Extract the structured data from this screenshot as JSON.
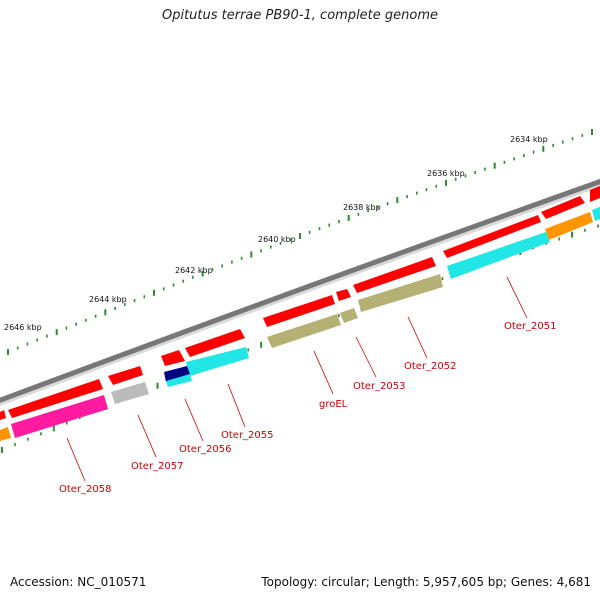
{
  "title": "Opitutus terrae PB90-1, complete genome",
  "footer": {
    "accession": "Accession: NC_010571",
    "summary": "Topology: circular; Length: 5,957,605 bp; Genes: 4,681"
  },
  "scale": {
    "markers": [
      {
        "label": "2634 kbp",
        "kbp": 2634
      },
      {
        "label": "2636 kbp",
        "kbp": 2636
      },
      {
        "label": "2638 kbp",
        "kbp": 2638
      },
      {
        "label": "2640 kbp",
        "kbp": 2640
      },
      {
        "label": "2642 kbp",
        "kbp": 2642
      },
      {
        "label": "2644 kbp",
        "kbp": 2644
      },
      {
        "label": "2646 kbp",
        "kbp": 2646
      }
    ]
  },
  "gene_labels": [
    {
      "label": "Oter_2051"
    },
    {
      "label": "Oter_2052"
    },
    {
      "label": "Oter_2053"
    },
    {
      "label": "groEL"
    },
    {
      "label": "Oter_2055"
    },
    {
      "label": "Oter_2056"
    },
    {
      "label": "Oter_2057"
    },
    {
      "label": "Oter_2058"
    }
  ],
  "colors": {
    "backbone": "#777777",
    "cds_arrow": "#ff0000",
    "tick": "#2e8b2e",
    "label": "#cc0000",
    "cyan": "#22e5e5",
    "olive": "#b5b073",
    "orange": "#ff9500",
    "magenta": "#ff1aa0",
    "gray": "#bbbbbb",
    "navy": "#000080"
  }
}
